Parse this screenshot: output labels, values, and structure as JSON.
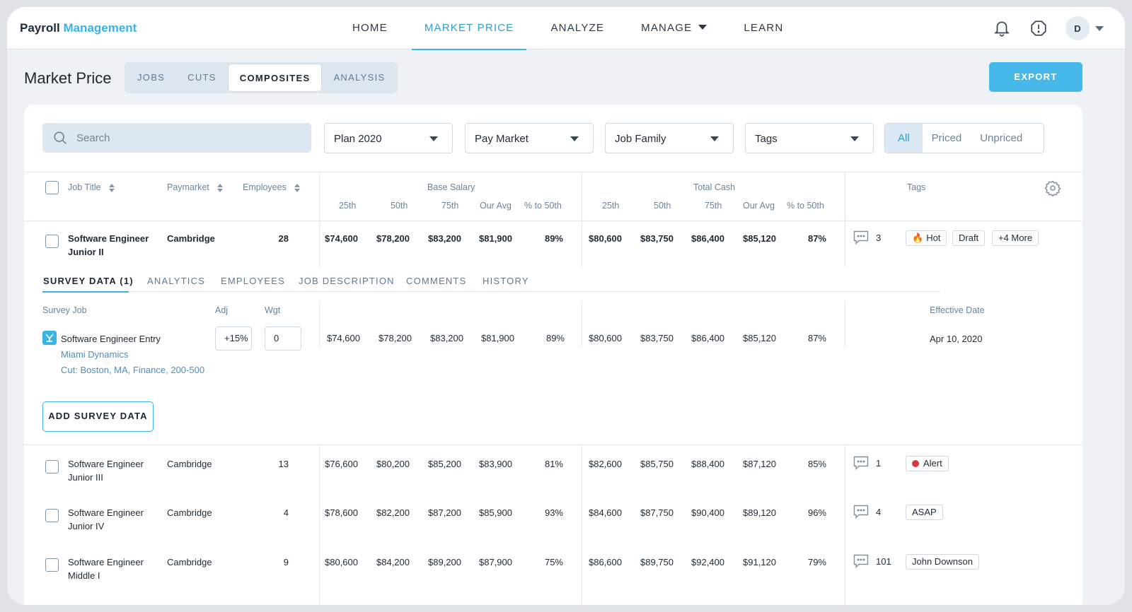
{
  "brand": {
    "part1": "Payroll",
    "part2": "Management"
  },
  "nav": {
    "home": "HOME",
    "market_price": "MARKET PRICE",
    "analyze": "ANALYZE",
    "manage": "MANAGE",
    "learn": "LEARN"
  },
  "user": {
    "initial": "D"
  },
  "page": {
    "title": "Market Price"
  },
  "subtabs": {
    "jobs": "JOBS",
    "cuts": "CUTS",
    "composites": "COMPOSITES",
    "analysis": "ANALYSIS"
  },
  "export_label": "EXPORT",
  "filters": {
    "search_placeholder": "Search",
    "plan": "Plan 2020",
    "pay_market": "Pay Market",
    "job_family": "Job Family",
    "tags": "Tags",
    "seg_all": "All",
    "seg_priced": "Priced",
    "seg_unpriced": "Unpriced"
  },
  "table_headers": {
    "job_title": "Job Title",
    "paymarket": "Paymarket",
    "employees": "Employees",
    "base_salary": "Base Salary",
    "total_cash": "Total Cash",
    "tags": "Tags",
    "p25": "25th",
    "p50": "50th",
    "p75": "75th",
    "our_avg": "Our Avg",
    "pct50": "% to 50th"
  },
  "rows": [
    {
      "title1": "Software Engineer",
      "title2": "Junior II",
      "paymarket": "Cambridge",
      "employees": "28",
      "base": [
        "$74,600",
        "$78,200",
        "$83,200",
        "$81,900",
        "89%"
      ],
      "cash": [
        "$80,600",
        "$83,750",
        "$86,400",
        "$85,120",
        "87%"
      ],
      "comments": "3",
      "tags": [
        "Hot",
        "Draft",
        "+4 More"
      ]
    },
    {
      "title1": "Software Engineer",
      "title2": "Junior III",
      "paymarket": "Cambridge",
      "employees": "13",
      "base": [
        "$76,600",
        "$80,200",
        "$85,200",
        "$83,900",
        "81%"
      ],
      "cash": [
        "$82,600",
        "$85,750",
        "$88,400",
        "$87,120",
        "85%"
      ],
      "comments": "1",
      "tags": [
        "Alert"
      ]
    },
    {
      "title1": "Software Engineer",
      "title2": "Junior IV",
      "paymarket": "Cambridge",
      "employees": "4",
      "base": [
        "$78,600",
        "$82,200",
        "$87,200",
        "$85,900",
        "93%"
      ],
      "cash": [
        "$84,600",
        "$87,750",
        "$90,400",
        "$89,120",
        "96%"
      ],
      "comments": "4",
      "tags": [
        "ASAP"
      ]
    },
    {
      "title1": "Software Engineer",
      "title2": "Middle I",
      "paymarket": "Cambridge",
      "employees": "9",
      "base": [
        "$80,600",
        "$84,200",
        "$89,200",
        "$87,900",
        "75%"
      ],
      "cash": [
        "$86,600",
        "$89,750",
        "$92,400",
        "$91,120",
        "79%"
      ],
      "comments": "101",
      "tags": [
        "John Downson"
      ]
    }
  ],
  "detail_tabs": {
    "survey": "SURVEY DATA (1)",
    "analytics": "ANALYTICS",
    "employees": "EMPLOYEES",
    "job_description": "JOB DESCRIPTION",
    "comments": "COMMENTS",
    "history": "HISTORY"
  },
  "survey": {
    "hdr_job": "Survey Job",
    "hdr_adj": "Adj",
    "hdr_wgt": "Wgt",
    "hdr_date": "Effective Date",
    "job": "Software Engineer Entry",
    "company": "Miami Dynamics",
    "cut": "Cut:  Boston, MA, Finance, 200-500",
    "adj": "+15%",
    "wgt": "0",
    "base": [
      "$74,600",
      "$78,200",
      "$83,200",
      "$81,900",
      "89%"
    ],
    "cash": [
      "$80,600",
      "$83,750",
      "$86,400",
      "$85,120",
      "87%"
    ],
    "date": "Apr 10, 2020",
    "add_label": "ADD SURVEY DATA"
  },
  "colors": {
    "accent": "#3bb4e5",
    "alert": "#d9383a",
    "hot": "#f08a24"
  }
}
